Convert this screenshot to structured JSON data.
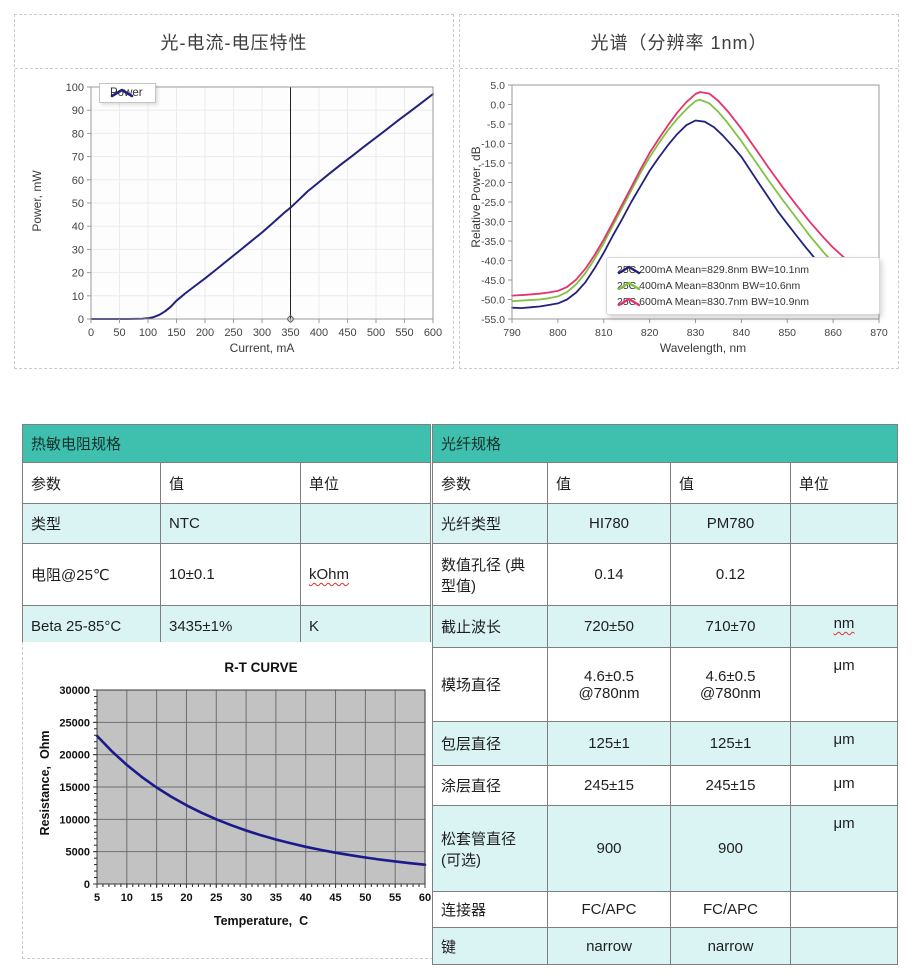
{
  "panels": {
    "liv_title": "光-电流-电压特性",
    "spectrum_title": "光谱（分辨率 1nm）"
  },
  "colors": {
    "teal_header": "#3fbfae",
    "row_cyan": "#daf3f3",
    "navy": "#22227c",
    "green": "#7fc341",
    "pink": "#e53370",
    "rt_curve": "#1a1a8c"
  },
  "thermistor_table": {
    "caption": "热敏电阻规格",
    "columns": {
      "param": "参数",
      "value": "值",
      "unit": "单位"
    },
    "rows": [
      {
        "param": "类型",
        "value": "NTC",
        "unit": ""
      },
      {
        "param": "电阻@25℃",
        "value": "10±0.1",
        "unit": "kOhm"
      },
      {
        "param": "Beta 25-85°C",
        "value": "3435±1%",
        "unit": "K"
      }
    ]
  },
  "fiber_table": {
    "caption": "光纤规格",
    "columns": {
      "param": "参数",
      "value1": "值",
      "value2": "值",
      "unit": "单位"
    },
    "rows": [
      {
        "param": "光纤类型",
        "value1": "HI780",
        "value2": "PM780",
        "unit": ""
      },
      {
        "param": "数值孔径 (典型值)",
        "value1": "0.14",
        "value2": "0.12",
        "unit": ""
      },
      {
        "param": "截止波长",
        "value1": "720±50",
        "value2": "710±70",
        "unit": "nm"
      },
      {
        "param": "模场直径",
        "value1": "4.6±0.5\n@780nm",
        "value2": "4.6±0.5\n@780nm",
        "unit": "μm"
      },
      {
        "param": "包层直径",
        "value1": "125±1",
        "value2": "125±1",
        "unit": "μm"
      },
      {
        "param": "涂层直径",
        "value1": "245±15",
        "value2": "245±15",
        "unit": "μm"
      },
      {
        "param": "松套管直径 (可选)",
        "value1": "900",
        "value2": "900",
        "unit": "μm"
      },
      {
        "param": "连接器",
        "value1": "FC/APC",
        "value2": "FC/APC",
        "unit": ""
      },
      {
        "param": "键",
        "value1": "narrow",
        "value2": "narrow",
        "unit": ""
      }
    ]
  },
  "chart_data": [
    {
      "id": "liv",
      "type": "line",
      "title": "",
      "xlabel": "Current, mA",
      "ylabel": "Power, mW",
      "xlim": [
        0,
        600
      ],
      "ylim": [
        0,
        100
      ],
      "xticks": [
        "0",
        "50",
        "100",
        "150",
        "200",
        "250",
        "300",
        "350",
        "400",
        "450",
        "500",
        "550",
        "600"
      ],
      "yticks": [
        "0",
        "10",
        "20",
        "30",
        "40",
        "50",
        "60",
        "70",
        "80",
        "90",
        "100"
      ],
      "grid": true,
      "legend_position": "top-left",
      "cursor_x": 350,
      "series": [
        {
          "name": "Power",
          "color": "#22227c",
          "width": 2,
          "points": [
            [
              0,
              0
            ],
            [
              30,
              0
            ],
            [
              60,
              0
            ],
            [
              90,
              0.1
            ],
            [
              100,
              0.3
            ],
            [
              110,
              0.8
            ],
            [
              120,
              1.8
            ],
            [
              130,
              3.3
            ],
            [
              140,
              5.3
            ],
            [
              150,
              7.9
            ],
            [
              165,
              11
            ],
            [
              180,
              13.8
            ],
            [
              200,
              17.5
            ],
            [
              220,
              21.4
            ],
            [
              240,
              25.4
            ],
            [
              260,
              29.3
            ],
            [
              280,
              33.3
            ],
            [
              300,
              37.3
            ],
            [
              320,
              41.6
            ],
            [
              340,
              46
            ],
            [
              350,
              48
            ],
            [
              360,
              50.3
            ],
            [
              380,
              55
            ],
            [
              400,
              59
            ],
            [
              420,
              63
            ],
            [
              440,
              66.9
            ],
            [
              460,
              70.6
            ],
            [
              480,
              74.5
            ],
            [
              500,
              78.2
            ],
            [
              520,
              82
            ],
            [
              540,
              85.8
            ],
            [
              560,
              89.5
            ],
            [
              580,
              93.2
            ],
            [
              600,
              97
            ]
          ]
        }
      ]
    },
    {
      "id": "spectrum",
      "type": "line",
      "title": "",
      "xlabel": "Wavelength, nm",
      "ylabel": "Relative Power, dB",
      "xlim": [
        790,
        870
      ],
      "ylim": [
        -55,
        5
      ],
      "xticks": [
        "790",
        "800",
        "810",
        "820",
        "830",
        "840",
        "850",
        "860",
        "870"
      ],
      "yticks": [
        "5.0",
        "0.0",
        "-5.0",
        "-10.0",
        "-15.0",
        "-20.0",
        "-25.0",
        "-30.0",
        "-35.0",
        "-40.0",
        "-45.0",
        "-50.0",
        "-55.0"
      ],
      "grid": false,
      "legend_position": "bottom-center",
      "series": [
        {
          "name": "25C 200mA Mean=829.8nm BW=10.1nm",
          "color": "#22227c",
          "width": 1.8,
          "points": [
            [
              790,
              -52.1
            ],
            [
              792,
              -52.2
            ],
            [
              794,
              -52
            ],
            [
              796,
              -51.8
            ],
            [
              798,
              -51.4
            ],
            [
              800,
              -51
            ],
            [
              802,
              -50
            ],
            [
              804,
              -48.2
            ],
            [
              806,
              -45.6
            ],
            [
              808,
              -42
            ],
            [
              810,
              -38
            ],
            [
              812,
              -33.6
            ],
            [
              814,
              -29.4
            ],
            [
              816,
              -25
            ],
            [
              818,
              -21
            ],
            [
              820,
              -17
            ],
            [
              822,
              -13.6
            ],
            [
              824,
              -10.4
            ],
            [
              826,
              -7.6
            ],
            [
              828,
              -5.3
            ],
            [
              830,
              -4.1
            ],
            [
              832,
              -4.4
            ],
            [
              834,
              -5.8
            ],
            [
              836,
              -8
            ],
            [
              838,
              -10.6
            ],
            [
              840,
              -13.4
            ],
            [
              842,
              -17
            ],
            [
              844,
              -20.5
            ],
            [
              846,
              -24
            ],
            [
              848,
              -27.5
            ],
            [
              850,
              -30.6
            ],
            [
              852,
              -33.6
            ],
            [
              854,
              -36.6
            ],
            [
              856,
              -39.4
            ],
            [
              858,
              -42
            ],
            [
              860,
              -44.4
            ],
            [
              862,
              -46
            ],
            [
              864,
              -47.4
            ],
            [
              866,
              -48.7
            ],
            [
              868,
              -50
            ],
            [
              870,
              -51
            ]
          ]
        },
        {
          "name": "25C 400mA Mean=830nm BW=10.6nm",
          "color": "#7fc341",
          "width": 1.8,
          "points": [
            [
              790,
              -50.4
            ],
            [
              793,
              -50.2
            ],
            [
              796,
              -50
            ],
            [
              798,
              -49.7
            ],
            [
              800,
              -49.2
            ],
            [
              802,
              -48.1
            ],
            [
              804,
              -46.1
            ],
            [
              806,
              -43.2
            ],
            [
              808,
              -39.6
            ],
            [
              810,
              -35.5
            ],
            [
              812,
              -31
            ],
            [
              814,
              -26.5
            ],
            [
              816,
              -22
            ],
            [
              818,
              -17.6
            ],
            [
              820,
              -13.5
            ],
            [
              822,
              -9.9
            ],
            [
              824,
              -6.6
            ],
            [
              826,
              -3.7
            ],
            [
              828,
              -1.2
            ],
            [
              830,
              0.9
            ],
            [
              831,
              1.2
            ],
            [
              833,
              0.3
            ],
            [
              835,
              -1.9
            ],
            [
              837,
              -4.7
            ],
            [
              840,
              -9.4
            ],
            [
              843,
              -14.5
            ],
            [
              846,
              -19.6
            ],
            [
              849,
              -24.5
            ],
            [
              852,
              -29.1
            ],
            [
              855,
              -33.8
            ],
            [
              858,
              -38
            ],
            [
              860,
              -40.5
            ],
            [
              863,
              -43.4
            ],
            [
              866,
              -45.8
            ],
            [
              868,
              -47.2
            ],
            [
              870,
              -48.8
            ]
          ]
        },
        {
          "name": "25C 600mA Mean=830.7nm BW=10.9nm",
          "color": "#e53370",
          "width": 1.8,
          "points": [
            [
              790,
              -49
            ],
            [
              793,
              -48.8
            ],
            [
              796,
              -48.5
            ],
            [
              798,
              -48.2
            ],
            [
              800,
              -47.8
            ],
            [
              802,
              -46.8
            ],
            [
              804,
              -44.9
            ],
            [
              806,
              -42.1
            ],
            [
              808,
              -38.6
            ],
            [
              810,
              -34.6
            ],
            [
              812,
              -30.2
            ],
            [
              814,
              -25.7
            ],
            [
              816,
              -21.2
            ],
            [
              818,
              -16.7
            ],
            [
              820,
              -12.4
            ],
            [
              822,
              -8.8
            ],
            [
              824,
              -5.3
            ],
            [
              826,
              -2.1
            ],
            [
              828,
              0.6
            ],
            [
              830,
              2.7
            ],
            [
              831,
              3.2
            ],
            [
              833,
              2.8
            ],
            [
              835,
              0.9
            ],
            [
              837,
              -1.7
            ],
            [
              840,
              -6.2
            ],
            [
              843,
              -11.2
            ],
            [
              846,
              -16.3
            ],
            [
              849,
              -21.2
            ],
            [
              852,
              -25.8
            ],
            [
              855,
              -30.2
            ],
            [
              858,
              -34.2
            ],
            [
              860,
              -36.7
            ],
            [
              863,
              -39.9
            ],
            [
              866,
              -42.7
            ],
            [
              868,
              -44.4
            ],
            [
              870,
              -46.2
            ]
          ]
        }
      ]
    },
    {
      "id": "rt",
      "type": "line",
      "title": "R-T CURVE",
      "xlabel": "Temperature,  C",
      "ylabel": "Resistance,  Ohm",
      "xlim": [
        5,
        60
      ],
      "ylim": [
        0,
        30000
      ],
      "xticks": [
        "5",
        "10",
        "15",
        "20",
        "25",
        "30",
        "35",
        "40",
        "45",
        "50",
        "55",
        "60"
      ],
      "yticks": [
        "0",
        "5000",
        "10000",
        "15000",
        "20000",
        "25000",
        "30000"
      ],
      "grid": true,
      "series": [
        {
          "name": "R-T",
          "color": "#1a1a8c",
          "width": 2.6,
          "points": [
            [
              5,
              22896
            ],
            [
              7.5,
              20519
            ],
            [
              10,
              18412
            ],
            [
              12.5,
              16558
            ],
            [
              15,
              14917
            ],
            [
              17.5,
              13464
            ],
            [
              20,
              12172
            ],
            [
              22.5,
              11024
            ],
            [
              25,
              10000
            ],
            [
              27.5,
              9086
            ],
            [
              30,
              8270
            ],
            [
              32.5,
              7537
            ],
            [
              35,
              6882
            ],
            [
              37.5,
              6291
            ],
            [
              40,
              5760
            ],
            [
              42.5,
              5280
            ],
            [
              45,
              4847
            ],
            [
              47.5,
              4456
            ],
            [
              50,
              4101
            ],
            [
              52.5,
              3780
            ],
            [
              55,
              3488
            ],
            [
              57.5,
              3223
            ],
            [
              60,
              2980
            ]
          ]
        }
      ]
    }
  ]
}
